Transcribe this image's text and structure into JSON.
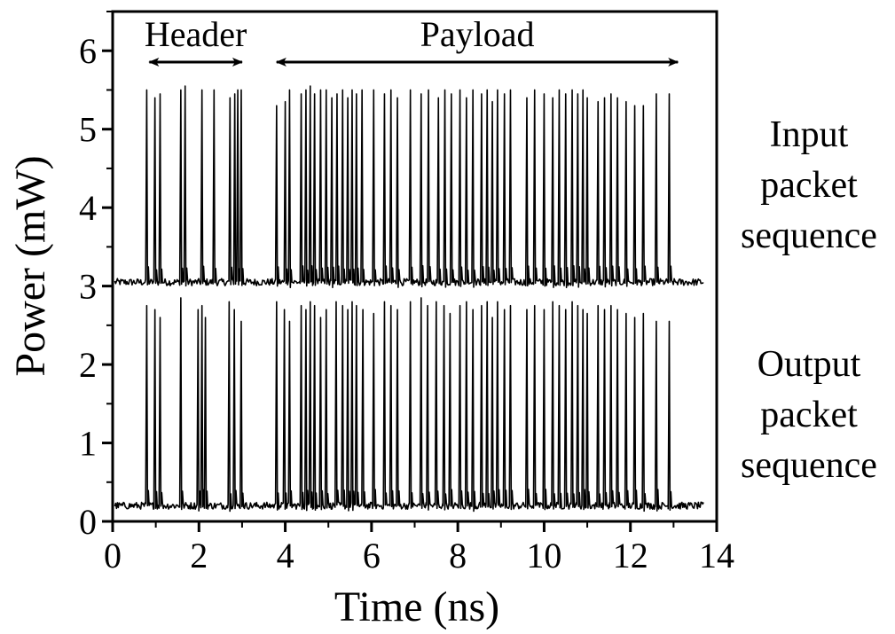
{
  "chart_data": {
    "type": "line",
    "title": "",
    "xlabel": "Time (ns)",
    "ylabel": "Power (mW)",
    "xlim": [
      0,
      14
    ],
    "ylim": [
      0,
      6.5
    ],
    "x_ticks": [
      0,
      2,
      4,
      6,
      8,
      10,
      12,
      14
    ],
    "y_ticks": [
      0,
      1,
      2,
      3,
      4,
      5,
      6
    ],
    "x_tick_labels": [
      "0",
      "2",
      "4",
      "6",
      "8",
      "10",
      "12",
      "14"
    ],
    "y_tick_labels": [
      "0",
      "1",
      "2",
      "3",
      "4",
      "5",
      "6"
    ],
    "grid": false,
    "line_color": "#000000",
    "annotations": {
      "header": {
        "label": "Header",
        "x_start": 0.85,
        "x_end": 3.0
      },
      "payload": {
        "label": "Payload",
        "x_start": 3.8,
        "x_end": 13.1
      }
    },
    "series_labels": [
      {
        "lines": [
          "Input",
          "packet",
          "sequence"
        ]
      },
      {
        "lines": [
          "Output",
          "packet",
          "sequence"
        ]
      }
    ],
    "series": [
      {
        "baseline": 3.05,
        "pulse_width_ns": 0.025,
        "pulses": [
          [
            0.79,
            5.5
          ],
          [
            0.98,
            5.4
          ],
          [
            1.1,
            5.45
          ],
          [
            1.58,
            5.5
          ],
          [
            1.68,
            5.55
          ],
          [
            2.07,
            5.5
          ],
          [
            2.35,
            5.5
          ],
          [
            2.72,
            5.4
          ],
          [
            2.83,
            5.45
          ],
          [
            2.9,
            5.5
          ],
          [
            2.98,
            5.5
          ],
          [
            3.8,
            5.3
          ],
          [
            4.0,
            5.35
          ],
          [
            4.1,
            5.5
          ],
          [
            4.37,
            5.45
          ],
          [
            4.48,
            5.5
          ],
          [
            4.58,
            5.55
          ],
          [
            4.68,
            5.45
          ],
          [
            4.82,
            5.5
          ],
          [
            4.95,
            5.5
          ],
          [
            5.08,
            5.4
          ],
          [
            5.2,
            5.45
          ],
          [
            5.33,
            5.5
          ],
          [
            5.45,
            5.4
          ],
          [
            5.55,
            5.5
          ],
          [
            5.65,
            5.45
          ],
          [
            5.78,
            5.5
          ],
          [
            6.05,
            5.5
          ],
          [
            6.3,
            5.45
          ],
          [
            6.45,
            5.5
          ],
          [
            6.6,
            5.4
          ],
          [
            6.9,
            5.5
          ],
          [
            7.15,
            5.45
          ],
          [
            7.32,
            5.5
          ],
          [
            7.55,
            5.4
          ],
          [
            7.7,
            5.5
          ],
          [
            7.85,
            5.45
          ],
          [
            8.05,
            5.5
          ],
          [
            8.2,
            5.4
          ],
          [
            8.35,
            5.5
          ],
          [
            8.55,
            5.45
          ],
          [
            8.68,
            5.5
          ],
          [
            8.8,
            5.35
          ],
          [
            8.92,
            5.5
          ],
          [
            9.08,
            5.45
          ],
          [
            9.22,
            5.5
          ],
          [
            9.6,
            5.4
          ],
          [
            9.78,
            5.5
          ],
          [
            10.0,
            5.45
          ],
          [
            10.2,
            5.4
          ],
          [
            10.35,
            5.5
          ],
          [
            10.5,
            5.45
          ],
          [
            10.65,
            5.5
          ],
          [
            10.78,
            5.45
          ],
          [
            10.9,
            5.5
          ],
          [
            11.0,
            5.4
          ],
          [
            11.25,
            5.35
          ],
          [
            11.4,
            5.4
          ],
          [
            11.55,
            5.45
          ],
          [
            11.7,
            5.4
          ],
          [
            11.9,
            5.35
          ],
          [
            12.1,
            5.3
          ],
          [
            12.3,
            5.3
          ],
          [
            12.6,
            5.45
          ],
          [
            12.9,
            5.45
          ]
        ],
        "x_start": 0.05,
        "x_end": 13.7
      },
      {
        "baseline": 0.2,
        "pulse_width_ns": 0.025,
        "pulses": [
          [
            0.79,
            2.75
          ],
          [
            0.98,
            2.7
          ],
          [
            1.1,
            2.6
          ],
          [
            1.58,
            2.85
          ],
          [
            1.98,
            2.7
          ],
          [
            2.07,
            2.75
          ],
          [
            2.15,
            2.6
          ],
          [
            2.7,
            2.8
          ],
          [
            2.82,
            2.7
          ],
          [
            2.98,
            2.55
          ],
          [
            3.8,
            2.8
          ],
          [
            3.98,
            2.7
          ],
          [
            4.1,
            2.55
          ],
          [
            4.37,
            2.75
          ],
          [
            4.48,
            2.7
          ],
          [
            4.58,
            2.8
          ],
          [
            4.68,
            2.75
          ],
          [
            4.82,
            2.6
          ],
          [
            4.95,
            2.7
          ],
          [
            5.18,
            2.8
          ],
          [
            5.33,
            2.75
          ],
          [
            5.45,
            2.7
          ],
          [
            5.55,
            2.8
          ],
          [
            5.65,
            2.75
          ],
          [
            5.8,
            2.7
          ],
          [
            6.05,
            2.65
          ],
          [
            6.3,
            2.8
          ],
          [
            6.45,
            2.75
          ],
          [
            6.6,
            2.7
          ],
          [
            6.9,
            2.8
          ],
          [
            7.15,
            2.85
          ],
          [
            7.3,
            2.75
          ],
          [
            7.5,
            2.8
          ],
          [
            7.68,
            2.75
          ],
          [
            7.82,
            2.65
          ],
          [
            8.05,
            2.75
          ],
          [
            8.2,
            2.8
          ],
          [
            8.35,
            2.7
          ],
          [
            8.55,
            2.75
          ],
          [
            8.68,
            2.8
          ],
          [
            8.8,
            2.6
          ],
          [
            8.92,
            2.8
          ],
          [
            9.08,
            2.7
          ],
          [
            9.22,
            2.75
          ],
          [
            9.6,
            2.7
          ],
          [
            9.78,
            2.75
          ],
          [
            10.0,
            2.7
          ],
          [
            10.2,
            2.8
          ],
          [
            10.35,
            2.75
          ],
          [
            10.5,
            2.7
          ],
          [
            10.65,
            2.8
          ],
          [
            10.78,
            2.75
          ],
          [
            10.9,
            2.7
          ],
          [
            11.0,
            2.65
          ],
          [
            11.25,
            2.75
          ],
          [
            11.4,
            2.7
          ],
          [
            11.55,
            2.75
          ],
          [
            11.7,
            2.7
          ],
          [
            11.9,
            2.65
          ],
          [
            12.1,
            2.6
          ],
          [
            12.3,
            2.65
          ],
          [
            12.6,
            2.55
          ],
          [
            12.9,
            2.55
          ]
        ],
        "x_start": 0.05,
        "x_end": 13.7
      }
    ]
  }
}
